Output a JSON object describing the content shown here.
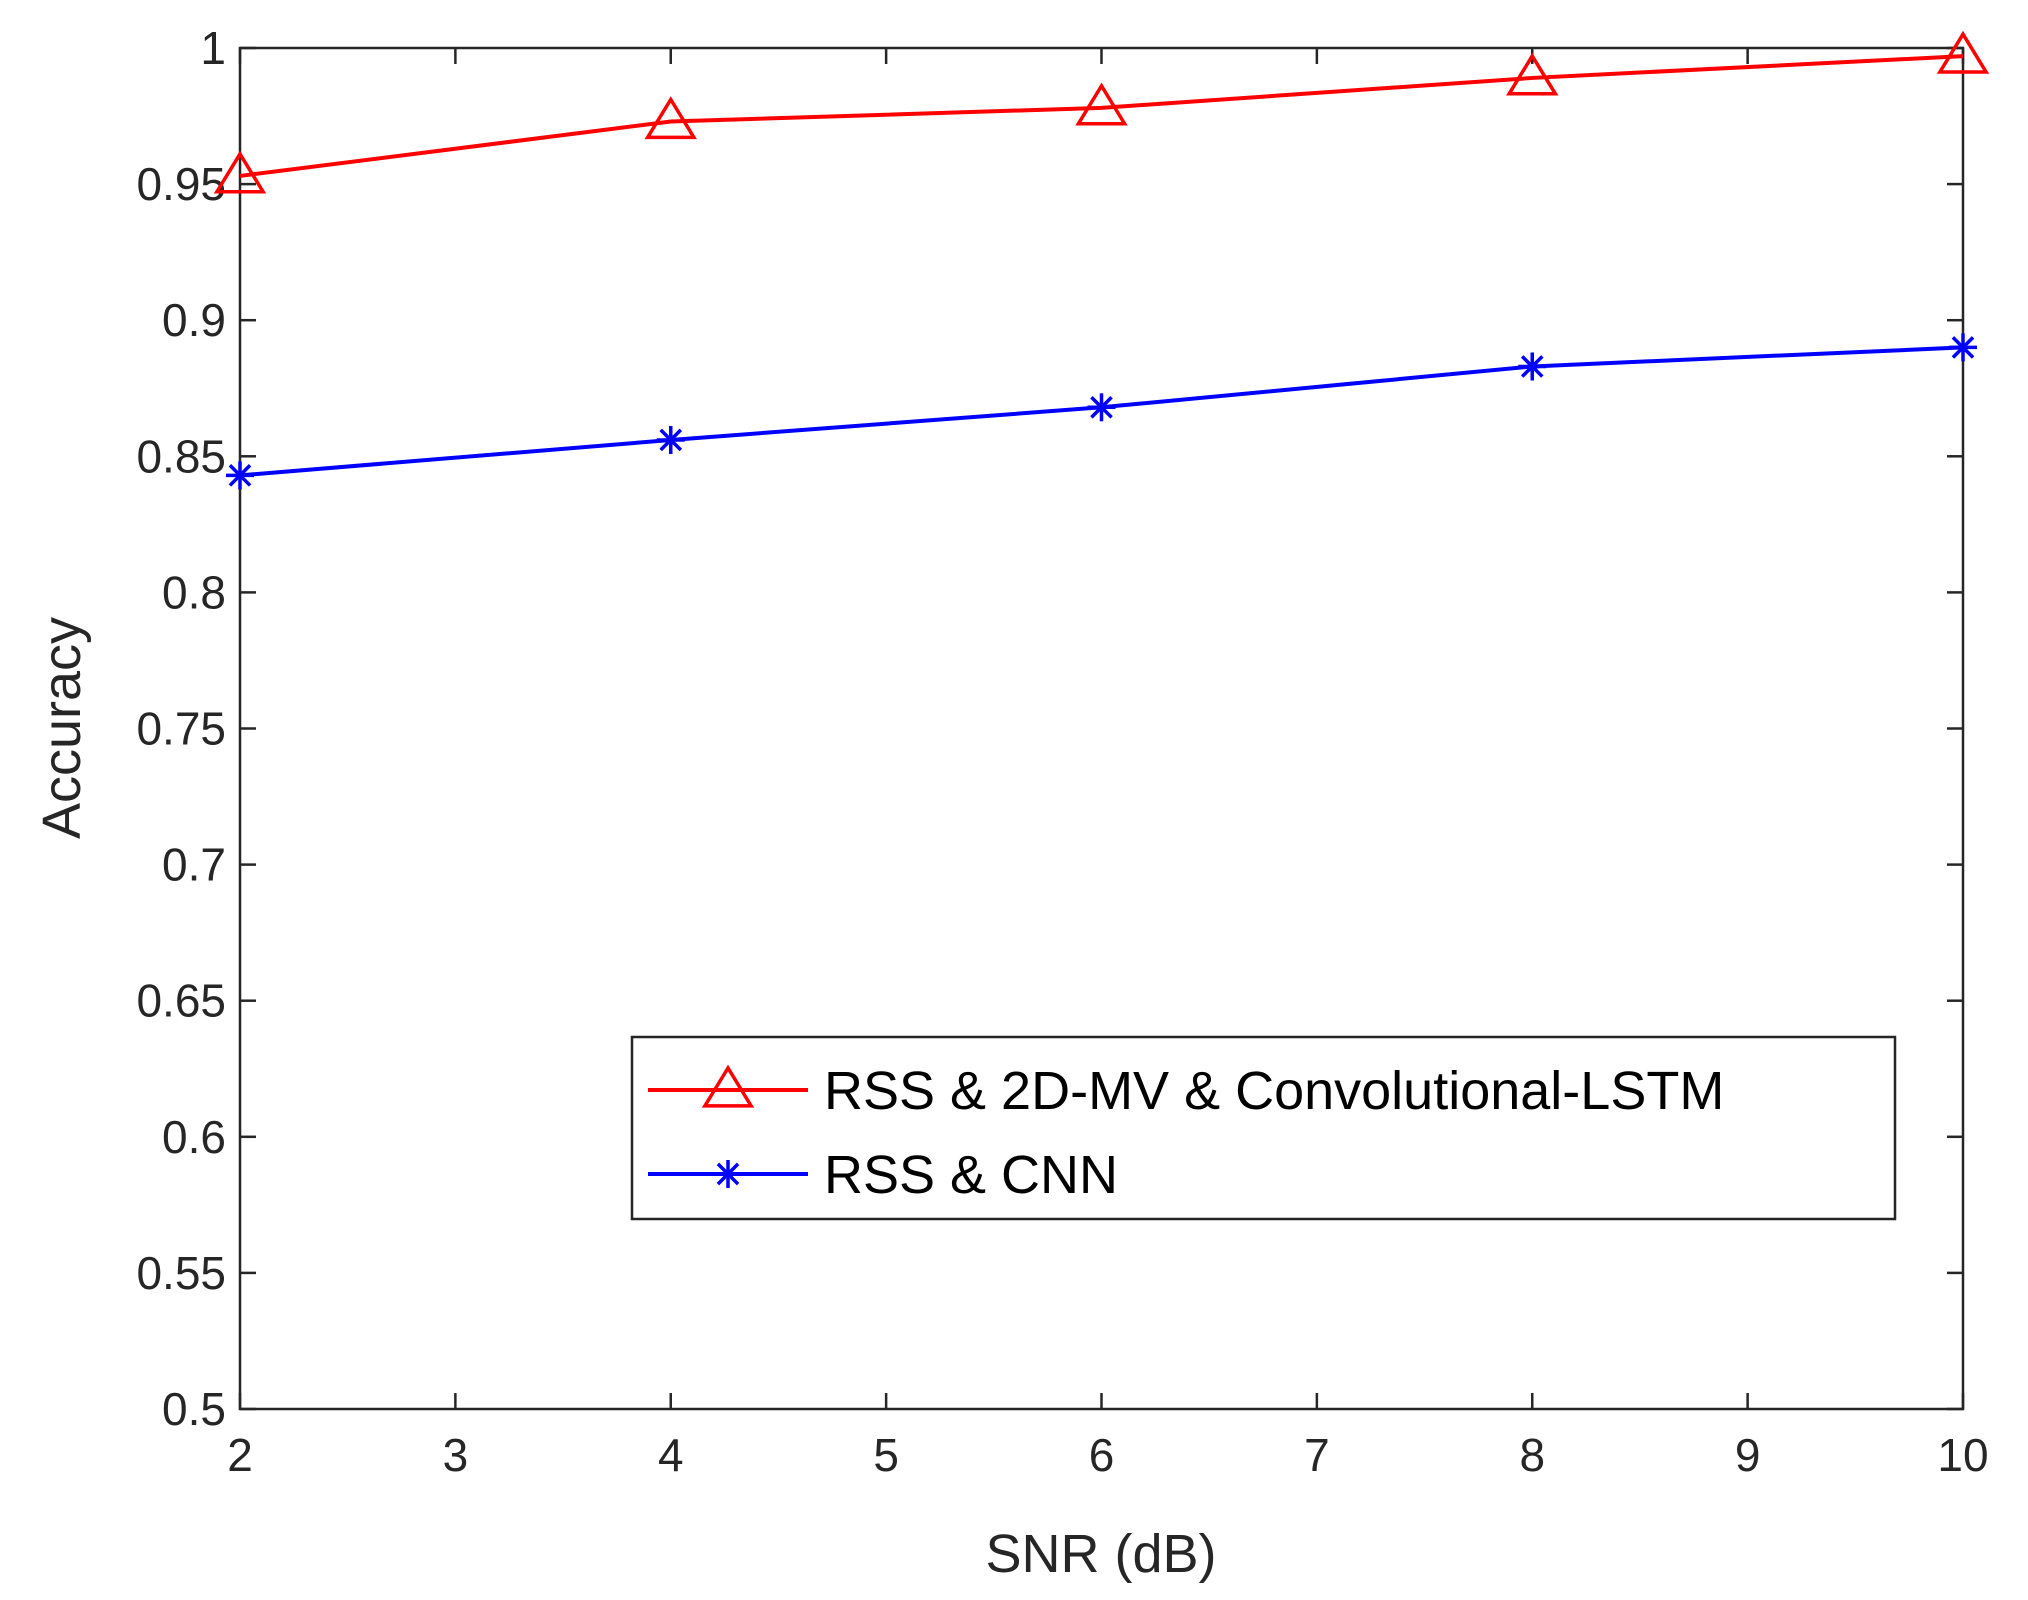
{
  "chart_data": {
    "type": "line",
    "title": "",
    "xlabel": "SNR (dB)",
    "ylabel": "Accuracy",
    "xlim": [
      2,
      10
    ],
    "ylim": [
      0.5,
      1
    ],
    "xticks": [
      2,
      3,
      4,
      5,
      6,
      7,
      8,
      9,
      10
    ],
    "yticks": [
      0.5,
      0.55,
      0.6,
      0.65,
      0.7,
      0.75,
      0.8,
      0.85,
      0.9,
      0.95,
      1
    ],
    "xtick_labels": [
      "2",
      "3",
      "4",
      "5",
      "6",
      "7",
      "8",
      "9",
      "10"
    ],
    "ytick_labels": [
      "0.5",
      "0.55",
      "0.6",
      "0.65",
      "0.7",
      "0.75",
      "0.8",
      "0.85",
      "0.9",
      "0.95",
      "1"
    ],
    "grid": false,
    "legend_position": "lower-right",
    "x": [
      2,
      4,
      6,
      8,
      10
    ],
    "series": [
      {
        "name": "RSS & 2D-MV & Convolutional-LSTM",
        "color": "#ff0000",
        "marker": "triangle",
        "values": [
          0.953,
          0.973,
          0.978,
          0.989,
          0.997
        ]
      },
      {
        "name": "RSS & CNN",
        "color": "#0000ff",
        "marker": "asterisk",
        "values": [
          0.843,
          0.856,
          0.868,
          0.883,
          0.89
        ]
      }
    ]
  }
}
